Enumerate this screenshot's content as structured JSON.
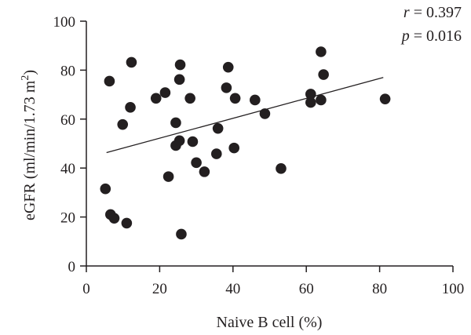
{
  "chart_data": {
    "type": "scatter",
    "title": "",
    "xlabel": "Naive B cell (%)",
    "ylabel": "eGFR (ml/min/1.73 m2)",
    "ylabel_main": "eGFR (ml/min/1.73 m",
    "ylabel_sup": "2",
    "ylabel_close": ")",
    "xlim": [
      0,
      100
    ],
    "ylim": [
      0,
      100
    ],
    "xticks": [
      0,
      20,
      40,
      60,
      80,
      100
    ],
    "yticks": [
      0,
      20,
      40,
      60,
      80,
      100
    ],
    "grid": false,
    "stats": {
      "r_symbol": "r",
      "r_value": " = 0.397",
      "p_symbol": "p",
      "p_value": " = 0.016"
    },
    "trendline": {
      "x": [
        5.5,
        81
      ],
      "y": [
        46.3,
        77
      ]
    },
    "points": [
      {
        "x": 5.2,
        "y": 31.5
      },
      {
        "x": 6.3,
        "y": 75.5
      },
      {
        "x": 6.6,
        "y": 21
      },
      {
        "x": 7.6,
        "y": 19.5
      },
      {
        "x": 9.9,
        "y": 57.8
      },
      {
        "x": 11.0,
        "y": 17.5
      },
      {
        "x": 12.0,
        "y": 64.8
      },
      {
        "x": 12.3,
        "y": 83.2
      },
      {
        "x": 19.0,
        "y": 68.5
      },
      {
        "x": 21.5,
        "y": 70.8
      },
      {
        "x": 22.4,
        "y": 36.5
      },
      {
        "x": 24.4,
        "y": 58.5
      },
      {
        "x": 24.4,
        "y": 49.2
      },
      {
        "x": 25.4,
        "y": 51.2
      },
      {
        "x": 25.4,
        "y": 76.2
      },
      {
        "x": 25.6,
        "y": 82.2
      },
      {
        "x": 25.9,
        "y": 13
      },
      {
        "x": 28.3,
        "y": 68.5
      },
      {
        "x": 29.0,
        "y": 50.8
      },
      {
        "x": 30.0,
        "y": 42.2
      },
      {
        "x": 32.2,
        "y": 38.5
      },
      {
        "x": 35.5,
        "y": 45.8
      },
      {
        "x": 35.9,
        "y": 56.2
      },
      {
        "x": 38.2,
        "y": 72.8
      },
      {
        "x": 38.7,
        "y": 81.2
      },
      {
        "x": 40.3,
        "y": 48.2
      },
      {
        "x": 40.6,
        "y": 68.5
      },
      {
        "x": 46.0,
        "y": 67.8
      },
      {
        "x": 48.7,
        "y": 62.2
      },
      {
        "x": 53.1,
        "y": 39.8
      },
      {
        "x": 61.2,
        "y": 66.8
      },
      {
        "x": 61.2,
        "y": 70.2
      },
      {
        "x": 64.0,
        "y": 67.8
      },
      {
        "x": 64.0,
        "y": 87.5
      },
      {
        "x": 64.7,
        "y": 78.2
      },
      {
        "x": 81.5,
        "y": 68.2
      }
    ]
  }
}
